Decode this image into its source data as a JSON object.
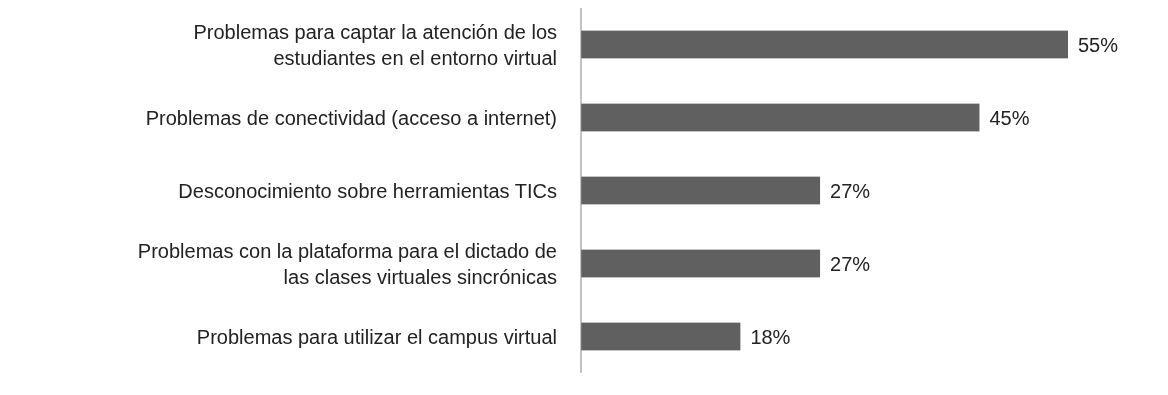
{
  "chart_data": {
    "type": "bar",
    "orientation": "horizontal",
    "color": "#606060",
    "categories": [
      "Problemas para captar la atención de los estudiantes en el entorno virtual",
      "Problemas de conectividad (acceso a internet)",
      "Desconocimiento sobre herramientas TICs",
      "Problemas con la plataforma para el dictado de las clases virtuales sincrónicas",
      "Problemas para utilizar el campus virtual"
    ],
    "values": [
      55,
      45,
      27,
      27,
      18
    ],
    "value_labels": [
      "55%",
      "45%",
      "27%",
      "27%",
      "18%"
    ]
  }
}
